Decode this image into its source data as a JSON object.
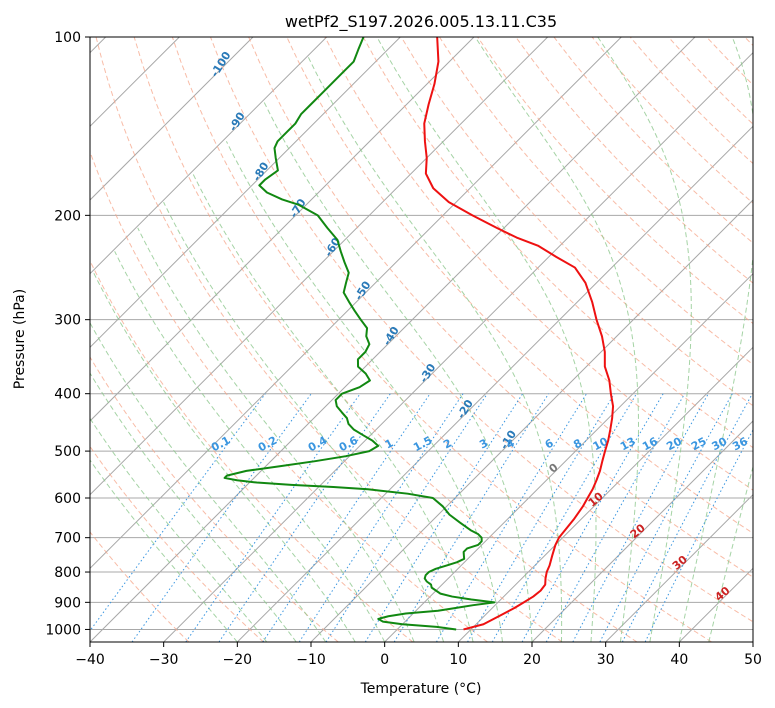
{
  "chart_data": {
    "type": "skewt",
    "title": "wetPf2_S197.2026.005.13.11.C35",
    "xlabel": "Temperature (°C)",
    "ylabel": "Pressure (hPa)",
    "xlim": [
      -40,
      50
    ],
    "ylim": [
      1050,
      100
    ],
    "x_ticks": [
      -40,
      -30,
      -20,
      -10,
      0,
      10,
      20,
      30,
      40,
      50
    ],
    "y_ticks": [
      100,
      200,
      300,
      400,
      500,
      600,
      700,
      800,
      900,
      1000
    ],
    "colors": {
      "temperature": "#ee1111",
      "dewpoint": "#118811",
      "isotherm": "#a8a8a8",
      "dry_adiabat": "#f5a58a",
      "moist_adiabat": "#8fc88f",
      "mixing_ratio": "#3a96e0",
      "dry_label": "#2a7ab8",
      "moist_label": "#cc2222",
      "zero_label": "#777777"
    },
    "dry_adiabat_labels": [
      {
        "text": "-100",
        "t": -100,
        "p": 112
      },
      {
        "text": "-90",
        "t": -90,
        "p": 140
      },
      {
        "text": "-80",
        "t": -80,
        "p": 170
      },
      {
        "text": "-70",
        "t": -70,
        "p": 196
      },
      {
        "text": "-60",
        "t": -60,
        "p": 228
      },
      {
        "text": "-50",
        "t": -50,
        "p": 270
      },
      {
        "text": "-40",
        "t": -40,
        "p": 322
      },
      {
        "text": "-30",
        "t": -30,
        "p": 372
      },
      {
        "text": "-20",
        "t": -20,
        "p": 428
      },
      {
        "text": "-10",
        "t": -10,
        "p": 482
      }
    ],
    "mixing_ratio_labels": [
      "0.1",
      "0.2",
      "0.4",
      "0.6",
      "1",
      "1.5",
      "2",
      "3",
      "4",
      "6",
      "8",
      "10",
      "13",
      "16",
      "20",
      "25",
      "30",
      "36"
    ],
    "mixing_ratio_values": [
      0.1,
      0.2,
      0.4,
      0.6,
      1,
      1.5,
      2,
      3,
      4,
      6,
      8,
      10,
      13,
      16,
      20,
      25,
      30,
      36
    ],
    "mixing_ratio_label_pressure": 500,
    "moist_adiabat_labels": [
      {
        "text": "0",
        "t": 0,
        "p": 540
      },
      {
        "text": "10",
        "t": 10,
        "p": 610
      },
      {
        "text": "20",
        "t": 20,
        "p": 690
      },
      {
        "text": "30",
        "t": 30,
        "p": 780
      },
      {
        "text": "40",
        "t": 40,
        "p": 880
      }
    ],
    "series": [
      {
        "name": "Temperature",
        "points": [
          [
            1000,
            9
          ],
          [
            980,
            11
          ],
          [
            950,
            12
          ],
          [
            920,
            13
          ],
          [
            900,
            13.5
          ],
          [
            880,
            14
          ],
          [
            860,
            14.2
          ],
          [
            840,
            14
          ],
          [
            820,
            13.2
          ],
          [
            800,
            12.5
          ],
          [
            780,
            12
          ],
          [
            750,
            11
          ],
          [
            720,
            10
          ],
          [
            700,
            9.5
          ],
          [
            680,
            9.3
          ],
          [
            650,
            9
          ],
          [
            620,
            8.5
          ],
          [
            600,
            8
          ],
          [
            580,
            7.5
          ],
          [
            560,
            6.8
          ],
          [
            540,
            6
          ],
          [
            520,
            5
          ],
          [
            500,
            4
          ],
          [
            480,
            3
          ],
          [
            460,
            1.8
          ],
          [
            440,
            0.5
          ],
          [
            420,
            -1
          ],
          [
            400,
            -3
          ],
          [
            380,
            -5
          ],
          [
            360,
            -7.5
          ],
          [
            340,
            -9.5
          ],
          [
            320,
            -12
          ],
          [
            300,
            -15
          ],
          [
            280,
            -18
          ],
          [
            260,
            -21.5
          ],
          [
            245,
            -25
          ],
          [
            235,
            -29
          ],
          [
            225,
            -33
          ],
          [
            218,
            -37
          ],
          [
            210,
            -41
          ],
          [
            200,
            -46
          ],
          [
            190,
            -51
          ],
          [
            180,
            -55
          ],
          [
            170,
            -58
          ],
          [
            160,
            -60
          ],
          [
            150,
            -62.5
          ],
          [
            140,
            -65
          ],
          [
            130,
            -67
          ],
          [
            120,
            -69
          ],
          [
            110,
            -71.5
          ],
          [
            100,
            -75
          ]
        ]
      },
      {
        "name": "Dewpoint",
        "points": [
          [
            1000,
            8
          ],
          [
            990,
            5
          ],
          [
            980,
            0
          ],
          [
            970,
            -3
          ],
          [
            960,
            -4
          ],
          [
            950,
            -3
          ],
          [
            940,
            -1
          ],
          [
            930,
            3
          ],
          [
            920,
            5
          ],
          [
            910,
            7
          ],
          [
            900,
            9.5
          ],
          [
            890,
            6
          ],
          [
            880,
            3
          ],
          [
            870,
            1
          ],
          [
            860,
            0
          ],
          [
            850,
            -1
          ],
          [
            840,
            -1.5
          ],
          [
            830,
            -2.5
          ],
          [
            820,
            -3.2
          ],
          [
            810,
            -3.5
          ],
          [
            800,
            -3.5
          ],
          [
            790,
            -3
          ],
          [
            780,
            -2
          ],
          [
            770,
            -1
          ],
          [
            760,
            -0.5
          ],
          [
            750,
            -1
          ],
          [
            740,
            -1.5
          ],
          [
            730,
            -1.5
          ],
          [
            720,
            -0.5
          ],
          [
            710,
            -0.5
          ],
          [
            700,
            -1
          ],
          [
            690,
            -2
          ],
          [
            680,
            -3.5
          ],
          [
            660,
            -6
          ],
          [
            640,
            -8.5
          ],
          [
            620,
            -10.5
          ],
          [
            600,
            -13
          ],
          [
            590,
            -17
          ],
          [
            580,
            -23
          ],
          [
            575,
            -28
          ],
          [
            570,
            -34
          ],
          [
            565,
            -39
          ],
          [
            560,
            -42
          ],
          [
            555,
            -44
          ],
          [
            550,
            -44
          ],
          [
            540,
            -42
          ],
          [
            530,
            -38
          ],
          [
            520,
            -34
          ],
          [
            510,
            -30.5
          ],
          [
            500,
            -28
          ],
          [
            490,
            -27.5
          ],
          [
            480,
            -29
          ],
          [
            470,
            -31
          ],
          [
            460,
            -33
          ],
          [
            450,
            -34.5
          ],
          [
            440,
            -35.5
          ],
          [
            430,
            -37
          ],
          [
            420,
            -38.5
          ],
          [
            410,
            -39.5
          ],
          [
            400,
            -39.5
          ],
          [
            390,
            -38
          ],
          [
            380,
            -37.5
          ],
          [
            370,
            -39
          ],
          [
            360,
            -41
          ],
          [
            350,
            -42
          ],
          [
            340,
            -42
          ],
          [
            330,
            -42.5
          ],
          [
            320,
            -44
          ],
          [
            310,
            -45
          ],
          [
            300,
            -47
          ],
          [
            290,
            -49
          ],
          [
            280,
            -51
          ],
          [
            270,
            -53
          ],
          [
            260,
            -54
          ],
          [
            250,
            -55
          ],
          [
            240,
            -57
          ],
          [
            230,
            -59
          ],
          [
            220,
            -61
          ],
          [
            210,
            -64
          ],
          [
            200,
            -67
          ],
          [
            192,
            -71
          ],
          [
            188,
            -74
          ],
          [
            183,
            -77
          ],
          [
            178,
            -79
          ],
          [
            174,
            -79
          ],
          [
            168,
            -78.5
          ],
          [
            160,
            -80.5
          ],
          [
            154,
            -82
          ],
          [
            150,
            -82.5
          ],
          [
            145,
            -82.5
          ],
          [
            140,
            -82.5
          ],
          [
            135,
            -83
          ],
          [
            130,
            -83
          ],
          [
            125,
            -83
          ],
          [
            120,
            -83
          ],
          [
            115,
            -83
          ],
          [
            110,
            -83
          ],
          [
            105,
            -84
          ],
          [
            100,
            -85
          ]
        ]
      }
    ]
  }
}
